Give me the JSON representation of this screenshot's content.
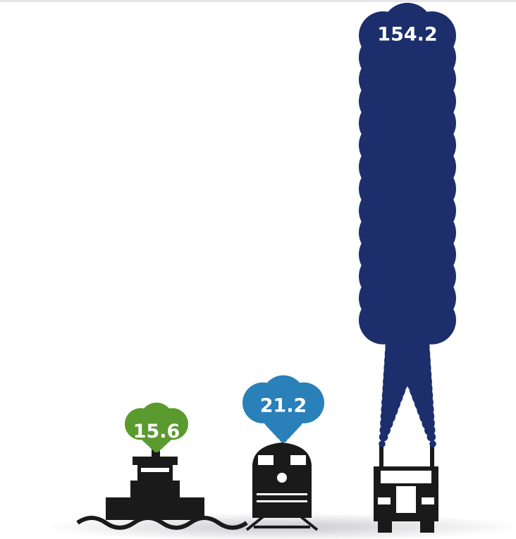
{
  "chart_data": {
    "type": "bar",
    "categories": [
      null,
      null,
      null
    ],
    "values": [
      15.6,
      21.2,
      154.2
    ],
    "colors": [
      "#5a9a2e",
      "#2a80b9",
      "#1c2f6c"
    ]
  }
}
